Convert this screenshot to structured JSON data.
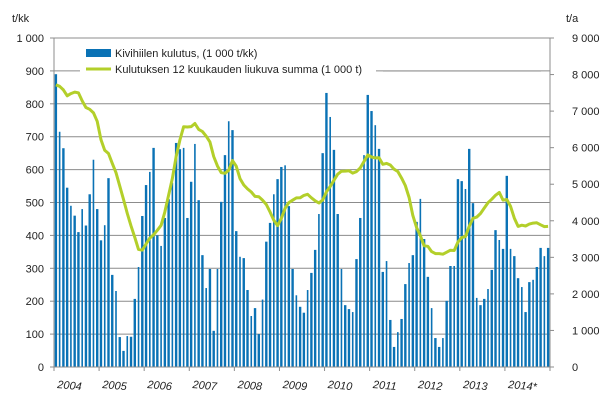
{
  "chart_data": {
    "type": "bar+line",
    "left_axis_unit": "t/kk",
    "right_axis_unit": "t/a",
    "ylim_left": [
      0,
      1000
    ],
    "ylim_right": [
      0,
      9000
    ],
    "left_ticks": [
      "0",
      "100",
      "200",
      "300",
      "400",
      "500",
      "600",
      "700",
      "800",
      "900",
      "1 000"
    ],
    "right_ticks": [
      "0",
      "1 000",
      "2 000",
      "3 000",
      "4 000",
      "5 000",
      "6 000",
      "7 000",
      "8 000",
      "9 000"
    ],
    "x_labels": [
      "2004",
      "2005",
      "2006",
      "2007",
      "2008",
      "2009",
      "2010",
      "2011",
      "2012",
      "2013",
      "2014*"
    ],
    "grid": "horizontal",
    "legend_position": "top-left",
    "colors": {
      "bars": "#0a72b5",
      "line": "#b3cf2a",
      "grid": "#8c8c8c"
    },
    "series": [
      {
        "name": "Kivihiilen kulutus, (1 000 t/kk)",
        "type": "bar",
        "axis": "left",
        "values": [
          890,
          715,
          665,
          545,
          490,
          460,
          410,
          480,
          430,
          525,
          630,
          480,
          385,
          431,
          574,
          280,
          231,
          91,
          49,
          94,
          92,
          207,
          304,
          459,
          553,
          593,
          666,
          400,
          368,
          453,
          510,
          560,
          681,
          662,
          666,
          453,
          563,
          678,
          507,
          340,
          240,
          298,
          110,
          298,
          502,
          644,
          747,
          720,
          413,
          335,
          331,
          234,
          155,
          179,
          100,
          205,
          381,
          438,
          525,
          571,
          608,
          613,
          489,
          298,
          218,
          183,
          165,
          234,
          286,
          356,
          465,
          650,
          833,
          760,
          660,
          465,
          298,
          188,
          176,
          167,
          328,
          453,
          644,
          827,
          778,
          735,
          663,
          289,
          322,
          143,
          61,
          106,
          146,
          252,
          316,
          340,
          441,
          511,
          389,
          274,
          179,
          88,
          61,
          88,
          201,
          307,
          307,
          571,
          565,
          541,
          663,
          498,
          210,
          188,
          207,
          237,
          295,
          416,
          386,
          359,
          581,
          359,
          337,
          270,
          243,
          167,
          258,
          265,
          304,
          362,
          337,
          362
        ]
      },
      {
        "name": "Kulutuksen 12 kuukauden liukuva summa (1 000 t)",
        "type": "line",
        "axis": "right",
        "values": [
          7720,
          7680,
          7580,
          7420,
          7480,
          7520,
          7500,
          7280,
          7100,
          7050,
          6950,
          6720,
          6215,
          5931,
          5840,
          5575,
          5316,
          4947,
          4586,
          4200,
          3862,
          3544,
          3218,
          3197,
          3365,
          3527,
          3619,
          3739,
          3876,
          4238,
          4699,
          5165,
          5754,
          6209,
          6571,
          6565,
          6575,
          6660,
          6501,
          6441,
          6313,
          6158,
          5758,
          5496,
          5317,
          5299,
          5380,
          5647,
          5497,
          5154,
          4978,
          4872,
          4787,
          4668,
          4658,
          4565,
          4444,
          4238,
          4016,
          3867,
          4062,
          4340,
          4498,
          4562,
          4625,
          4629,
          4694,
          4723,
          4628,
          4546,
          4486,
          4565,
          4790,
          4937,
          5108,
          5275,
          5355,
          5360,
          5371,
          5304,
          5346,
          5443,
          5622,
          5799,
          5744,
          5719,
          5722,
          5546,
          5570,
          5525,
          5410,
          5349,
          5167,
          4966,
          4638,
          4151,
          3814,
          3590,
          3316,
          3301,
          3158,
          3103,
          3103,
          3085,
          3140,
          3195,
          3186,
          3417,
          3541,
          3571,
          3845,
          4069,
          4100,
          4200,
          4346,
          4495,
          4589,
          4698,
          4777,
          4565,
          4581,
          4399,
          4073,
          3845,
          3878,
          3857,
          3908,
          3936,
          3945,
          3891,
          3842,
          3845
        ]
      }
    ]
  }
}
